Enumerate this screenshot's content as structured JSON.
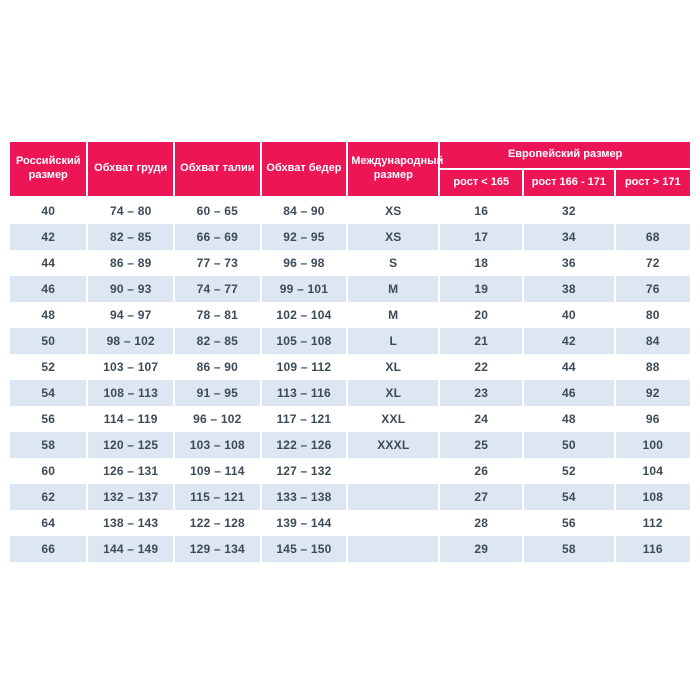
{
  "chart_data": {
    "type": "table",
    "headers": {
      "russian_size": "Российский размер",
      "chest": "Обхват груди",
      "waist": "Обхват талии",
      "hips": "Обхват бедер",
      "international_size": "Международный размер",
      "european_size_group": "Европейский размер",
      "height_lt_165": "рост < 165",
      "height_166_171": "рост 166 - 171",
      "height_gt_171": "рост > 171"
    },
    "rows": [
      [
        "40",
        "74 – 80",
        "60 – 65",
        "84 – 90",
        "XS",
        "16",
        "32",
        ""
      ],
      [
        "42",
        "82 – 85",
        "66 – 69",
        "92 – 95",
        "XS",
        "17",
        "34",
        "68"
      ],
      [
        "44",
        "86 – 89",
        "77 – 73",
        "96 – 98",
        "S",
        "18",
        "36",
        "72"
      ],
      [
        "46",
        "90 – 93",
        "74 – 77",
        "99 – 101",
        "M",
        "19",
        "38",
        "76"
      ],
      [
        "48",
        "94 – 97",
        "78 – 81",
        "102 – 104",
        "M",
        "20",
        "40",
        "80"
      ],
      [
        "50",
        "98 – 102",
        "82 – 85",
        "105 – 108",
        "L",
        "21",
        "42",
        "84"
      ],
      [
        "52",
        "103 – 107",
        "86 – 90",
        "109 – 112",
        "XL",
        "22",
        "44",
        "88"
      ],
      [
        "54",
        "108 – 113",
        "91 – 95",
        "113 – 116",
        "XL",
        "23",
        "46",
        "92"
      ],
      [
        "56",
        "114 – 119",
        "96 – 102",
        "117 – 121",
        "XXL",
        "24",
        "48",
        "96"
      ],
      [
        "58",
        "120 – 125",
        "103 – 108",
        "122 – 126",
        "XXXL",
        "25",
        "50",
        "100"
      ],
      [
        "60",
        "126 – 131",
        "109 – 114",
        "127 – 132",
        "",
        "26",
        "52",
        "104"
      ],
      [
        "62",
        "132 – 137",
        "115 – 121",
        "133 – 138",
        "",
        "27",
        "54",
        "108"
      ],
      [
        "64",
        "138 – 143",
        "122 – 128",
        "139 – 144",
        "",
        "28",
        "56",
        "112"
      ],
      [
        "66",
        "144 – 149",
        "129 – 134",
        "145 – 150",
        "",
        "29",
        "58",
        "116"
      ]
    ]
  },
  "colors": {
    "header_bg": "#ec1556",
    "header_text": "#ffffff",
    "row_bg": "#ffffff",
    "row_stripe_bg": "#dce7f3",
    "cell_text": "#3d4a57",
    "page_bg": "#ffffff"
  }
}
